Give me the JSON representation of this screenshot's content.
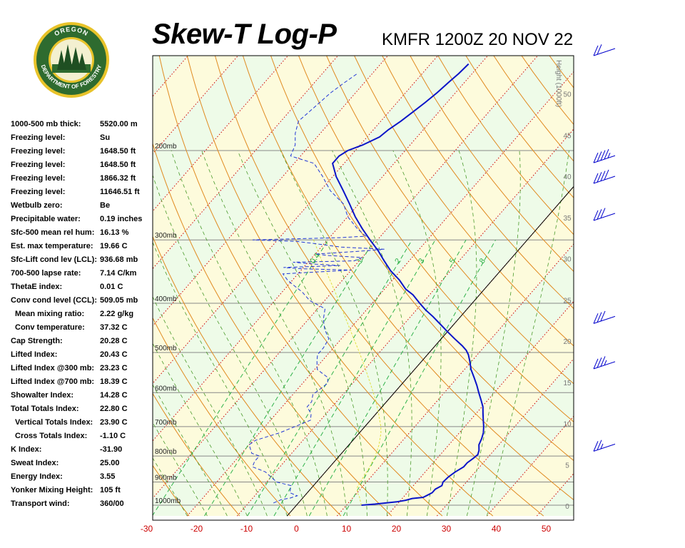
{
  "header": {
    "title": "Skew-T Log-P",
    "station": "KMFR 1200Z 20 NOV 22"
  },
  "logo": {
    "top_text": "OREGON",
    "bottom_text": "DEPARTMENT OF FORESTRY",
    "ring_color": "#2e6b2f",
    "gold_color": "#e8c32a"
  },
  "stats": [
    {
      "label": "1000-500 mb thick:",
      "value": "5520.00 m"
    },
    {
      "label": "Freezing level:",
      "value": "Su"
    },
    {
      "label": "Freezing level:",
      "value": "1648.50 ft"
    },
    {
      "label": "Freezing level:",
      "value": "1648.50 ft"
    },
    {
      "label": "Freezing level:",
      "value": "1866.32 ft"
    },
    {
      "label": "Freezing level:",
      "value": "11646.51 ft"
    },
    {
      "label": "Wetbulb zero:",
      "value": "Be"
    },
    {
      "label": "Precipitable water:",
      "value": "0.19 inches"
    },
    {
      "label": "Sfc-500 mean rel hum:",
      "value": "16.13 %"
    },
    {
      "label": "Est. max temperature:",
      "value": "19.66 C"
    },
    {
      "label": "Sfc-Lift cond lev (LCL):",
      "value": "936.68 mb"
    },
    {
      "label": "700-500 lapse rate:",
      "value": "7.14 C/km"
    },
    {
      "label": "ThetaE index:",
      "value": "0.01 C"
    },
    {
      "label": "Conv cond level (CCL):",
      "value": "509.05 mb"
    },
    {
      "label": "Mean mixing ratio:",
      "value": "2.22 g/kg",
      "indent": true
    },
    {
      "label": "Conv temperature:",
      "value": "37.32 C",
      "indent": true
    },
    {
      "label": "Cap Strength:",
      "value": "20.28 C"
    },
    {
      "label": "Lifted Index:",
      "value": "20.43 C"
    },
    {
      "label": "Lifted Index @300 mb:",
      "value": "23.23 C"
    },
    {
      "label": "Lifted Index @700 mb:",
      "value": "18.39 C"
    },
    {
      "label": "Showalter Index:",
      "value": "14.28 C"
    },
    {
      "label": "Total Totals Index:",
      "value": "22.80 C"
    },
    {
      "label": "Vertical Totals Index:",
      "value": "23.90 C",
      "indent": true
    },
    {
      "label": "Cross Totals Index:",
      "value": "-1.10 C",
      "indent": true
    },
    {
      "label": "K Index:",
      "value": "-31.90"
    },
    {
      "label": "Sweat Index:",
      "value": "25.00"
    },
    {
      "label": "Energy Index:",
      "value": "3.55"
    },
    {
      "label": "Yonker Mixing Height:",
      "value": "105 ft"
    },
    {
      "label": "Transport wind:",
      "value": "360/00"
    }
  ],
  "chart_data": {
    "type": "line",
    "title": "Skew-T Log-P",
    "subtitle": "KMFR 1200Z 20 NOV 22",
    "xlabel": "",
    "ylabel": "",
    "x_ticks": [
      "-30",
      "-20",
      "-10",
      "0",
      "10",
      "20",
      "30",
      "40",
      "50"
    ],
    "x_tick_values": [
      -30,
      -20,
      -10,
      0,
      10,
      20,
      30,
      40,
      50
    ],
    "pressure_levels": [
      {
        "p": 200,
        "label": "200mb"
      },
      {
        "p": 300,
        "label": "300mb"
      },
      {
        "p": 400,
        "label": "400mb"
      },
      {
        "p": 500,
        "label": "500mb"
      },
      {
        "p": 600,
        "label": "600mb"
      },
      {
        "p": 700,
        "label": "700mb"
      },
      {
        "p": 800,
        "label": "800mb"
      },
      {
        "p": 900,
        "label": "900mb"
      },
      {
        "p": 1000,
        "label": "1000mb"
      }
    ],
    "height_axis_label": "Height (1000ft)",
    "height_ticks": [
      {
        "h": 50,
        "label": "50"
      },
      {
        "h": 45,
        "label": "45"
      },
      {
        "h": 40,
        "label": "40"
      },
      {
        "h": 35,
        "label": "35"
      },
      {
        "h": 30,
        "label": "30"
      },
      {
        "h": 25,
        "label": "25"
      },
      {
        "h": 20,
        "label": "20"
      },
      {
        "h": 15,
        "label": "15"
      },
      {
        "h": 10,
        "label": "10"
      },
      {
        "h": 5,
        "label": "5"
      },
      {
        "h": 0,
        "label": "0"
      }
    ],
    "mixing_ratio_labels": [
      "0.4",
      "1",
      "2",
      "3",
      "5",
      "8"
    ],
    "mixing_ratio_values": [
      0.4,
      1,
      2,
      3,
      5,
      8
    ],
    "grid": true,
    "colors": {
      "temperature": "#0a14c8",
      "dewpoint": "#1f35d6",
      "parcel": "#e0e040",
      "isotherm": "#cc0000",
      "dry_adiabat": "#e08a20",
      "moist_adiabat": "#4a9a2a",
      "mixing_ratio": "#2fb24a",
      "tick_label": "#cc0000",
      "pressure_line": "#888888",
      "zero_isotherm": "#000000",
      "wind_barb": "#0000cc"
    },
    "series": [
      {
        "name": "Temperature",
        "points": [
          [
            1000,
            13.0
          ],
          [
            995,
            15.5
          ],
          [
            990,
            17.5
          ],
          [
            985,
            19.5
          ],
          [
            978,
            21.0
          ],
          [
            970,
            22.0
          ],
          [
            965,
            24.0
          ],
          [
            955,
            24.5
          ],
          [
            945,
            25.0
          ],
          [
            930,
            25.0
          ],
          [
            915,
            25.7
          ],
          [
            900,
            25.3
          ],
          [
            880,
            25.5
          ],
          [
            860,
            26.0
          ],
          [
            840,
            26.8
          ],
          [
            825,
            26.8
          ],
          [
            810,
            27.2
          ],
          [
            795,
            27.5
          ],
          [
            780,
            27.0
          ],
          [
            760,
            26.0
          ],
          [
            740,
            25.5
          ],
          [
            720,
            24.8
          ],
          [
            700,
            23.8
          ],
          [
            680,
            22.6
          ],
          [
            660,
            21.4
          ],
          [
            640,
            20.2
          ],
          [
            620,
            18.6
          ],
          [
            600,
            16.9
          ],
          [
            580,
            15.2
          ],
          [
            560,
            13.3
          ],
          [
            540,
            11.3
          ],
          [
            520,
            9.6
          ],
          [
            505,
            8.2
          ],
          [
            495,
            7.0
          ],
          [
            485,
            5.4
          ],
          [
            470,
            2.7
          ],
          [
            455,
            0.0
          ],
          [
            440,
            -2.7
          ],
          [
            425,
            -5.5
          ],
          [
            412,
            -8.2
          ],
          [
            400,
            -10.5
          ],
          [
            385,
            -13.3
          ],
          [
            375,
            -15.8
          ],
          [
            360,
            -18.6
          ],
          [
            345,
            -22.0
          ],
          [
            330,
            -25.0
          ],
          [
            315,
            -28.0
          ],
          [
            300,
            -31.5
          ],
          [
            285,
            -35.0
          ],
          [
            270,
            -38.5
          ],
          [
            255,
            -41.8
          ],
          [
            240,
            -45.4
          ],
          [
            225,
            -49.3
          ],
          [
            212,
            -52.3
          ],
          [
            205,
            -52.3
          ],
          [
            200,
            -51.5
          ],
          [
            195,
            -49.5
          ],
          [
            188,
            -47.5
          ],
          [
            182,
            -47.0
          ],
          [
            175,
            -46.0
          ],
          [
            168,
            -45.2
          ],
          [
            161,
            -44.4
          ],
          [
            154,
            -43.7
          ],
          [
            147,
            -43.2
          ],
          [
            141,
            -42.7
          ],
          [
            135,
            -42.4
          ]
        ]
      },
      {
        "name": "Dewpoint",
        "points": [
          [
            990,
            -5.0
          ],
          [
            975,
            -4.0
          ],
          [
            968,
            -2.5
          ],
          [
            958,
            -1.5
          ],
          [
            945,
            -3.5
          ],
          [
            930,
            -4.0
          ],
          [
            915,
            -4.5
          ],
          [
            900,
            -8.0
          ],
          [
            880,
            -10.0
          ],
          [
            860,
            -12.0
          ],
          [
            840,
            -15.5
          ],
          [
            820,
            -16.0
          ],
          [
            800,
            -16.0
          ],
          [
            790,
            -18.0
          ],
          [
            775,
            -19.0
          ],
          [
            760,
            -20.0
          ],
          [
            745,
            -19.5
          ],
          [
            720,
            -16.0
          ],
          [
            700,
            -14.0
          ],
          [
            680,
            -12.0
          ],
          [
            660,
            -13.0
          ],
          [
            640,
            -15.0
          ],
          [
            625,
            -15.0
          ],
          [
            605,
            -16.0
          ],
          [
            590,
            -15.5
          ],
          [
            575,
            -15.0
          ],
          [
            560,
            -16.0
          ],
          [
            540,
            -19.5
          ],
          [
            520,
            -21.0
          ],
          [
            505,
            -22.0
          ],
          [
            490,
            -22.0
          ],
          [
            470,
            -22.5
          ],
          [
            450,
            -25.0
          ],
          [
            430,
            -27.0
          ],
          [
            410,
            -28.5
          ],
          [
            395,
            -33.0
          ],
          [
            380,
            -36.0
          ],
          [
            370,
            -38.5
          ],
          [
            360,
            -41.0
          ],
          [
            350,
            -43.0
          ],
          [
            344,
            -30.0
          ],
          [
            342,
            -40.0
          ],
          [
            340,
            -44.0
          ],
          [
            337,
            -33.0
          ],
          [
            335,
            -38.0
          ],
          [
            332,
            -43.0
          ],
          [
            330,
            -31.0
          ],
          [
            325,
            -30.0
          ],
          [
            322,
            -37.0
          ],
          [
            320,
            -40.0
          ],
          [
            316,
            -32.0
          ],
          [
            313,
            -27.0
          ],
          [
            310,
            -36.0
          ],
          [
            305,
            -42.0
          ],
          [
            302,
            -46.0
          ],
          [
            300,
            -55.0
          ],
          [
            297,
            -38.0
          ],
          [
            295,
            -33.0
          ],
          [
            285,
            -36.0
          ],
          [
            270,
            -40.0
          ],
          [
            255,
            -43.0
          ],
          [
            240,
            -48.0
          ],
          [
            225,
            -52.0
          ],
          [
            212,
            -56.0
          ],
          [
            205,
            -62.0
          ],
          [
            195,
            -63.0
          ],
          [
            185,
            -65.0
          ],
          [
            175,
            -66.5
          ],
          [
            168,
            -66.0
          ],
          [
            161,
            -65.5
          ],
          [
            154,
            -65.0
          ],
          [
            147,
            -64.0
          ],
          [
            141,
            -63.0
          ]
        ]
      },
      {
        "name": "Parcel",
        "points": [
          [
            1000,
            13.0
          ],
          [
            980,
            12.0
          ],
          [
            960,
            11.0
          ],
          [
            945,
            10.0
          ],
          [
            920,
            9.0
          ],
          [
            880,
            8.5
          ],
          [
            840,
            8.0
          ],
          [
            800,
            7.2
          ],
          [
            760,
            6.0
          ],
          [
            720,
            4.3
          ],
          [
            700,
            3.2
          ],
          [
            660,
            0.5
          ],
          [
            620,
            -2.5
          ],
          [
            580,
            -6.0
          ],
          [
            540,
            -9.8
          ],
          [
            500,
            -14.0
          ],
          [
            460,
            -18.7
          ],
          [
            420,
            -23.8
          ],
          [
            380,
            -29.4
          ],
          [
            340,
            -35.8
          ],
          [
            300,
            -42.8
          ]
        ]
      }
    ],
    "wind_barbs": [
      {
        "height_kft": 55.5,
        "speed_kt": 20
      },
      {
        "height_kft": 42.5,
        "speed_kt": 45
      },
      {
        "height_kft": 40.0,
        "speed_kt": 40
      },
      {
        "height_kft": 35.5,
        "speed_kt": 30
      },
      {
        "height_kft": 23.0,
        "speed_kt": 30
      },
      {
        "height_kft": 17.5,
        "speed_kt": 35
      },
      {
        "height_kft": 7.5,
        "speed_kt": 25
      }
    ]
  }
}
